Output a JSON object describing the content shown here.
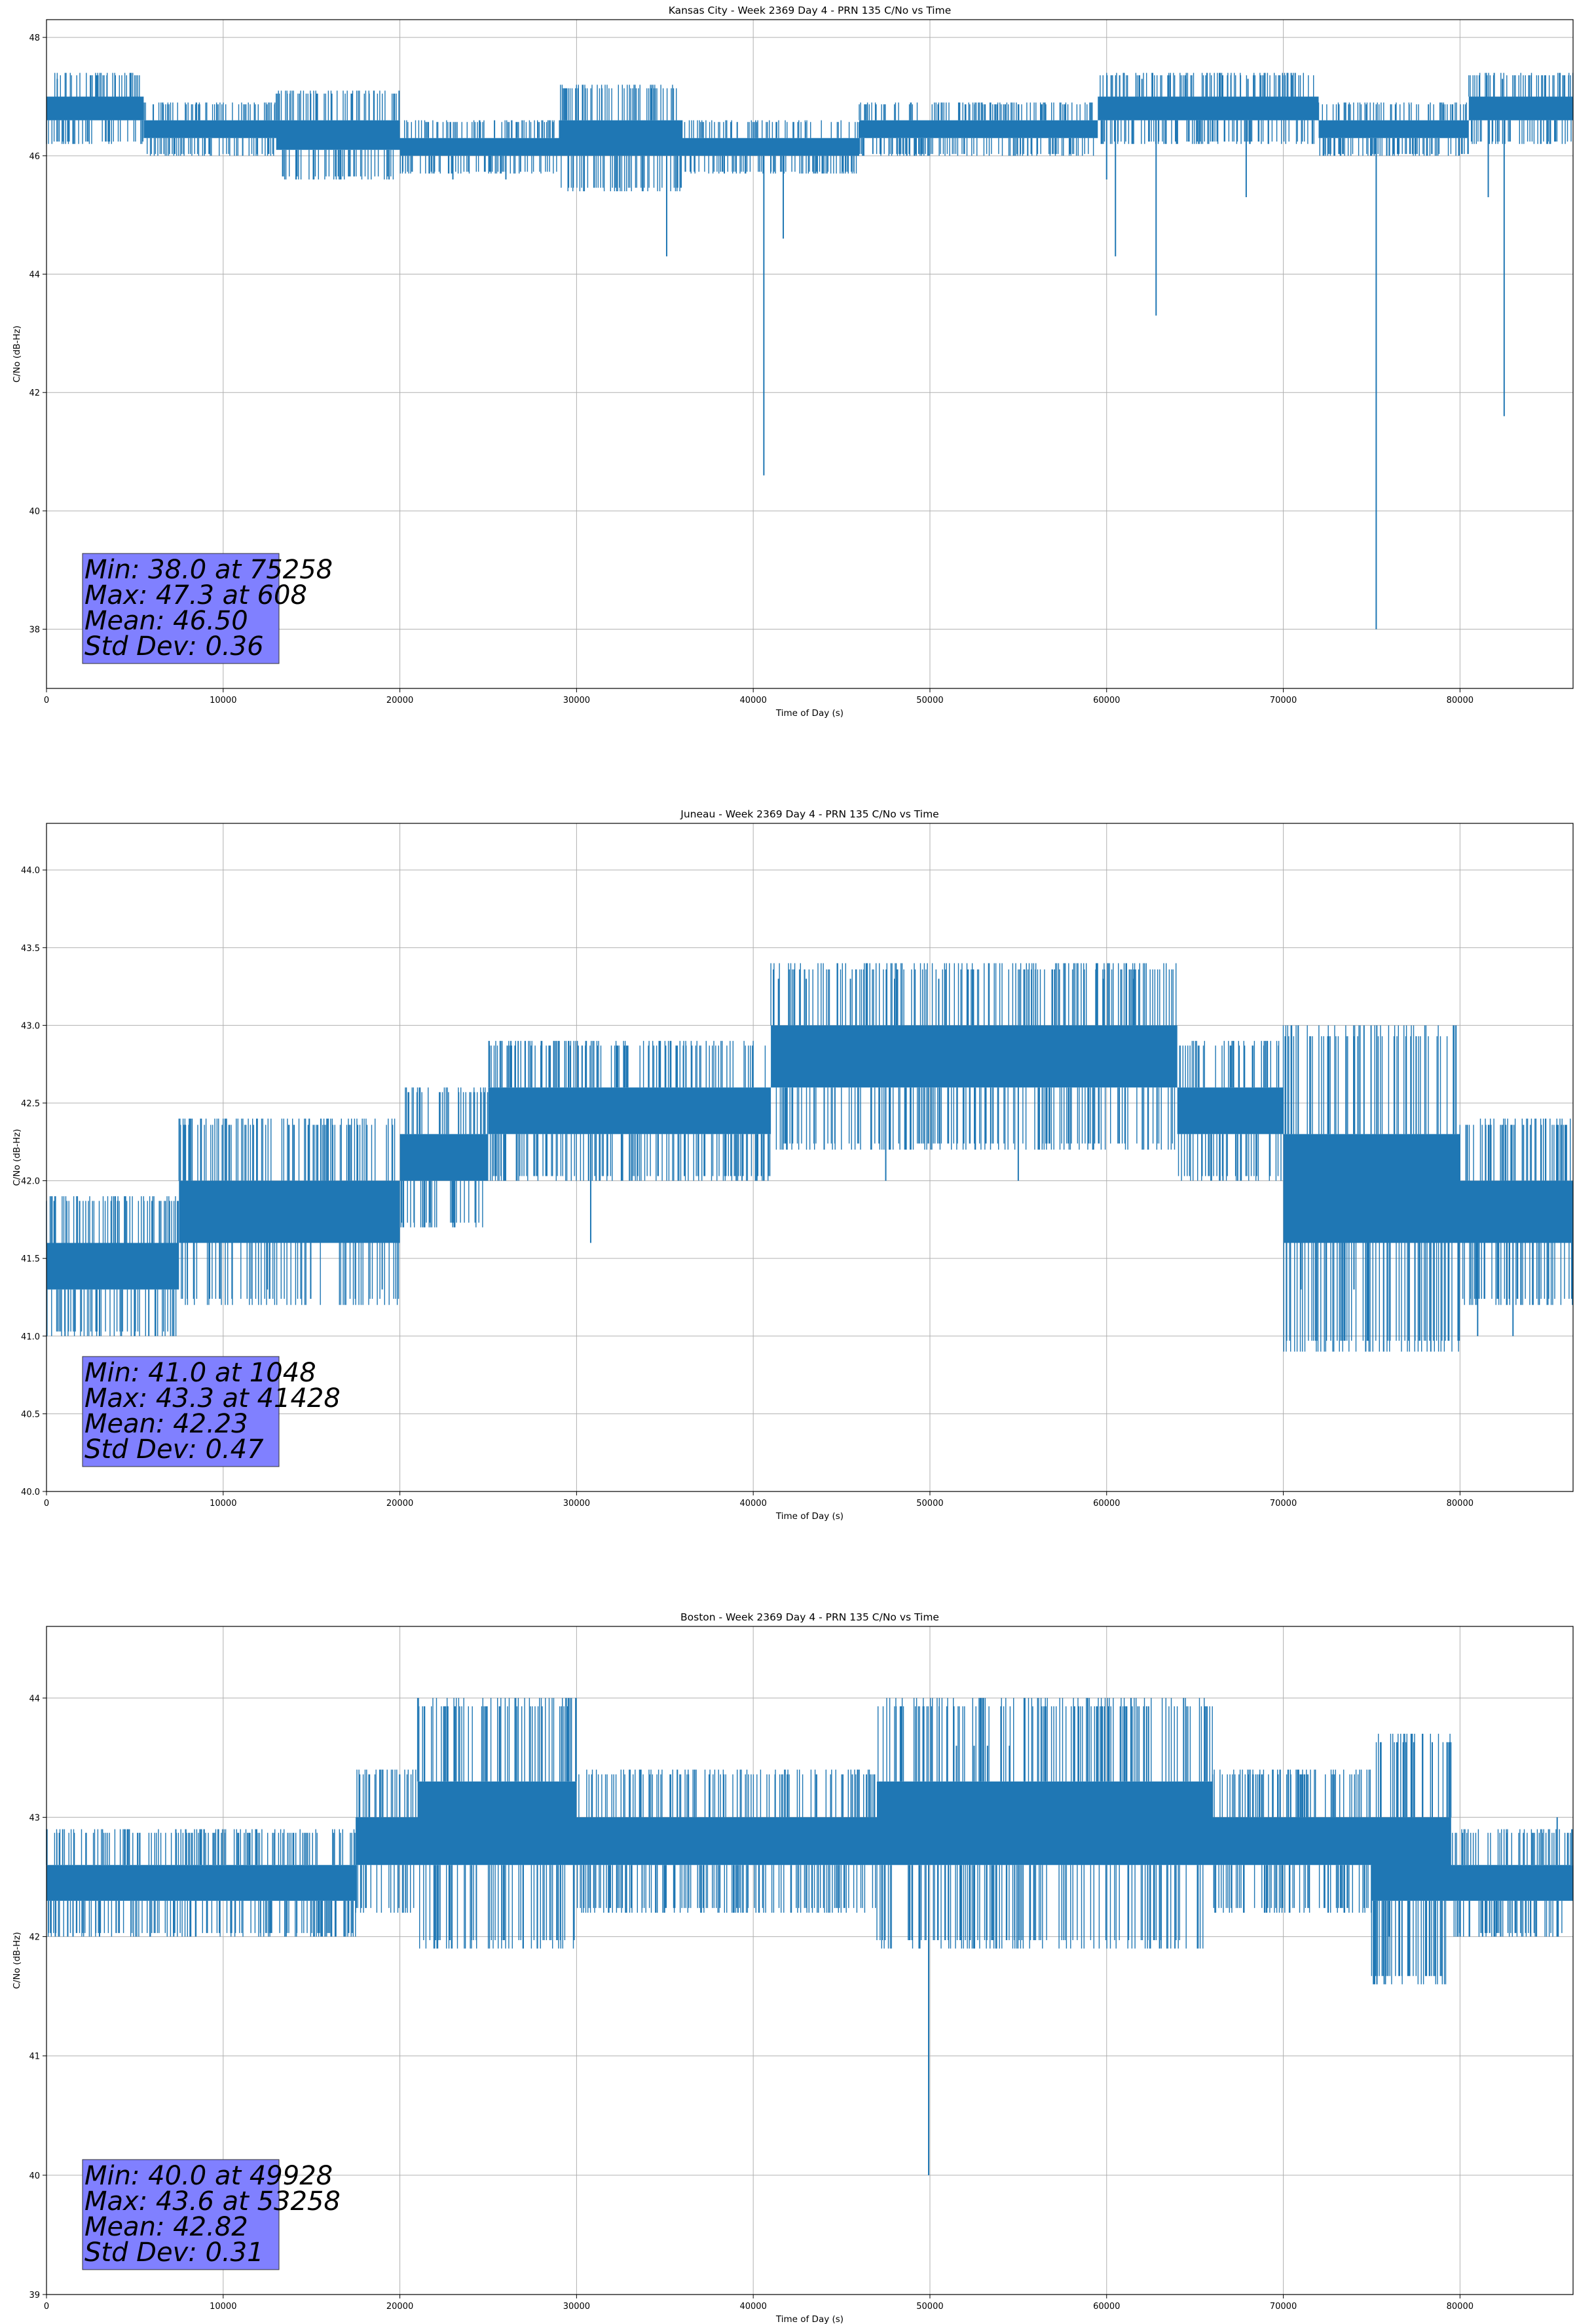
{
  "chart_data": [
    {
      "type": "line",
      "title": "Kansas City - Week 2369 Day 4 - PRN 135 C/No vs Time",
      "xlabel": "Time of Day (s)",
      "ylabel": "C/No (dB-Hz)",
      "xlim": [
        0,
        86400
      ],
      "ylim": [
        37,
        48.3
      ],
      "xticks": [
        0,
        10000,
        20000,
        30000,
        40000,
        50000,
        60000,
        70000,
        80000
      ],
      "yticks": [
        38,
        40,
        42,
        44,
        46,
        48
      ],
      "ytick_decimals": 0,
      "grid": true,
      "line_color": "#1f77b4",
      "stats": [
        "Min: 38.0 at 75258",
        "Max: 47.3 at 608",
        "Mean: 46.50",
        "Std Dev: 0.36"
      ],
      "stats_box_color": "#8080ff",
      "bands": [
        [
          0,
          5500,
          46.6,
          47.0
        ],
        [
          5500,
          13000,
          46.3,
          46.6
        ],
        [
          13000,
          20000,
          46.1,
          46.6
        ],
        [
          20000,
          29000,
          46.0,
          46.3
        ],
        [
          29000,
          36000,
          46.0,
          46.6
        ],
        [
          36000,
          46000,
          46.0,
          46.3
        ],
        [
          46000,
          52000,
          46.3,
          46.6
        ],
        [
          52000,
          59500,
          46.3,
          46.6
        ],
        [
          59500,
          72000,
          46.6,
          47.0
        ],
        [
          72000,
          80500,
          46.3,
          46.6
        ],
        [
          80500,
          86400,
          46.6,
          47.0
        ]
      ],
      "spikes": [
        [
          40600,
          40.6
        ],
        [
          75258,
          38.0
        ],
        [
          82500,
          41.6
        ],
        [
          62800,
          43.3
        ],
        [
          35100,
          44.3
        ],
        [
          41700,
          44.6
        ],
        [
          60500,
          44.3
        ],
        [
          67900,
          45.3
        ],
        [
          81600,
          45.3
        ],
        [
          23000,
          45.6
        ],
        [
          26000,
          45.6
        ],
        [
          60000,
          45.6
        ]
      ],
      "tops": [
        [
          608,
          47.3
        ],
        [
          62000,
          47.3
        ],
        [
          64500,
          47.3
        ],
        [
          68000,
          47.3
        ],
        [
          82400,
          47.3
        ],
        [
          84800,
          47.3
        ]
      ]
    },
    {
      "type": "line",
      "title": "Juneau - Week 2369 Day 4 - PRN 135 C/No vs Time",
      "xlabel": "Time of Day (s)",
      "ylabel": "C/No (dB-Hz)",
      "xlim": [
        0,
        86400
      ],
      "ylim": [
        40,
        44.3
      ],
      "xticks": [
        0,
        10000,
        20000,
        30000,
        40000,
        50000,
        60000,
        70000,
        80000
      ],
      "yticks": [
        40.0,
        40.5,
        41.0,
        41.5,
        42.0,
        42.5,
        43.0,
        43.5,
        44.0
      ],
      "ytick_decimals": 1,
      "grid": true,
      "line_color": "#1f77b4",
      "stats": [
        "Min: 41.0 at 1048",
        "Max: 43.3 at 41428",
        "Mean: 42.23",
        "Std Dev: 0.47"
      ],
      "stats_box_color": "#8080ff",
      "bands": [
        [
          0,
          7500,
          41.3,
          41.6
        ],
        [
          7500,
          12000,
          41.6,
          42.0
        ],
        [
          12000,
          20000,
          41.6,
          42.0
        ],
        [
          20000,
          25000,
          42.0,
          42.3
        ],
        [
          25000,
          33000,
          42.3,
          42.6
        ],
        [
          33000,
          41000,
          42.3,
          42.6
        ],
        [
          41000,
          55000,
          42.6,
          43.0
        ],
        [
          55000,
          64000,
          42.6,
          43.0
        ],
        [
          64000,
          70000,
          42.3,
          42.6
        ],
        [
          70000,
          80000,
          41.6,
          42.3
        ],
        [
          80000,
          86400,
          41.6,
          42.0
        ]
      ],
      "spikes": [
        [
          1048,
          41.0
        ],
        [
          3000,
          41.0
        ],
        [
          5000,
          41.0
        ],
        [
          7200,
          41.0
        ],
        [
          12500,
          41.3
        ],
        [
          19000,
          41.3
        ],
        [
          30800,
          41.6
        ],
        [
          47500,
          42.0
        ],
        [
          55000,
          42.0
        ],
        [
          71000,
          41.3
        ],
        [
          74000,
          41.3
        ],
        [
          81000,
          41.0
        ],
        [
          83000,
          41.0
        ]
      ],
      "tops": [
        [
          41428,
          43.3
        ],
        [
          43000,
          43.3
        ],
        [
          45500,
          43.3
        ],
        [
          48000,
          43.3
        ],
        [
          50500,
          43.3
        ],
        [
          59800,
          43.3
        ],
        [
          61500,
          43.3
        ]
      ]
    },
    {
      "type": "line",
      "title": "Boston - Week 2369 Day 4 - PRN 135 C/No vs Time",
      "xlabel": "Time of Day (s)",
      "ylabel": "C/No (dB-Hz)",
      "xlim": [
        0,
        86400
      ],
      "ylim": [
        39,
        44.6
      ],
      "xticks": [
        0,
        10000,
        20000,
        30000,
        40000,
        50000,
        60000,
        70000,
        80000
      ],
      "yticks": [
        39,
        40,
        41,
        42,
        43,
        44
      ],
      "ytick_decimals": 0,
      "grid": true,
      "line_color": "#1f77b4",
      "stats": [
        "Min: 40.0 at 49928",
        "Max: 43.6 at 53258",
        "Mean: 42.82",
        "Std Dev: 0.31"
      ],
      "stats_box_color": "#8080ff",
      "bands": [
        [
          0,
          17500,
          42.3,
          42.6
        ],
        [
          17500,
          21000,
          42.6,
          43.0
        ],
        [
          21000,
          30000,
          42.6,
          43.3
        ],
        [
          30000,
          38000,
          42.6,
          43.0
        ],
        [
          38000,
          47000,
          42.6,
          43.0
        ],
        [
          47000,
          66000,
          42.6,
          43.3
        ],
        [
          66000,
          75000,
          42.6,
          43.0
        ],
        [
          75000,
          79500,
          42.3,
          43.0
        ],
        [
          79500,
          86400,
          42.3,
          42.6
        ]
      ],
      "spikes": [
        [
          49928,
          40.0
        ],
        [
          75300,
          41.6
        ],
        [
          500,
          42.0
        ],
        [
          1200,
          42.0
        ],
        [
          3000,
          42.0
        ],
        [
          7200,
          42.0
        ],
        [
          13500,
          42.0
        ],
        [
          76000,
          42.0
        ],
        [
          80000,
          42.0
        ],
        [
          84000,
          42.0
        ]
      ],
      "tops": [
        [
          53258,
          43.6
        ],
        [
          51500,
          43.6
        ],
        [
          52500,
          43.6
        ],
        [
          54500,
          43.6
        ],
        [
          85500,
          43.0
        ]
      ]
    }
  ]
}
